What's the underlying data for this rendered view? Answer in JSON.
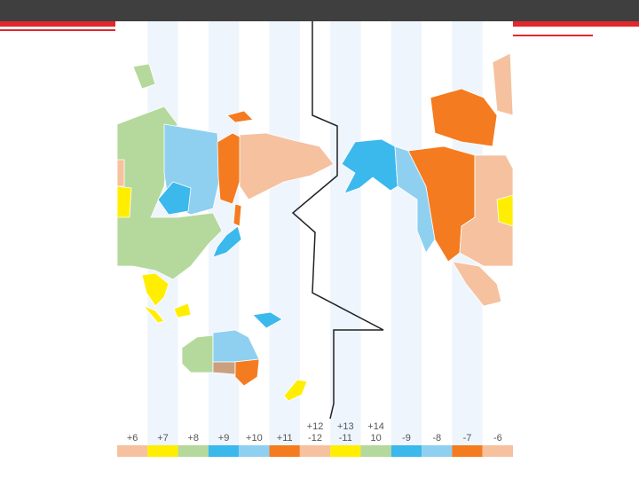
{
  "zones": [
    {
      "label": "+6",
      "color": "#f5c19f"
    },
    {
      "label": "+7",
      "color": "#ffee00"
    },
    {
      "label": "+8",
      "color": "#b5d89c"
    },
    {
      "label": "+9",
      "color": "#3bb8ec"
    },
    {
      "label": "+10",
      "color": "#8fd0f0"
    },
    {
      "label": "+11",
      "color": "#f47b20"
    },
    {
      "label": "-12",
      "color": "#f5c19f",
      "alt": "+12"
    },
    {
      "label": "-11",
      "color": "#ffee00",
      "alt": "+13"
    },
    {
      "label": "10",
      "color": "#b5d89c",
      "alt": "+14"
    },
    {
      "label": "-9",
      "color": "#3bb8ec"
    },
    {
      "label": "-8",
      "color": "#8fd0f0"
    },
    {
      "label": "-7",
      "color": "#f47b20"
    },
    {
      "label": "-6",
      "color": "#f5c19f"
    }
  ]
}
